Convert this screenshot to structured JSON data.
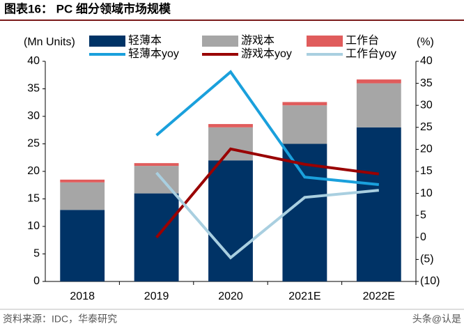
{
  "chart_data": {
    "type": "bar",
    "stacked": true,
    "title": "图表16： PC 细分领域市场规模",
    "source": "资料来源：IDC，华泰研究",
    "watermark": "头条@认是",
    "y_label": "(Mn Units)",
    "y2_label": "(%)",
    "categories": [
      "2018",
      "2019",
      "2020",
      "2021E",
      "2022E"
    ],
    "ylim": [
      0,
      40
    ],
    "yticks": [
      0,
      5,
      10,
      15,
      20,
      25,
      30,
      35,
      40
    ],
    "y2lim": [
      -10,
      40
    ],
    "y2ticks": [
      {
        "value": -10,
        "label": "(10)"
      },
      {
        "value": -5,
        "label": "(5)"
      },
      0,
      5,
      10,
      15,
      20,
      25,
      30,
      35,
      40
    ],
    "series": [
      {
        "name": "轻薄本",
        "type": "bar",
        "color": "#003366",
        "values": [
          13,
          16,
          22,
          25,
          28
        ]
      },
      {
        "name": "游戏本",
        "type": "bar",
        "color": "#a6a6a6",
        "values": [
          5,
          5,
          6,
          7,
          8
        ]
      },
      {
        "name": "工作台",
        "type": "bar",
        "color": "#e05c5c",
        "values": [
          0.5,
          0.5,
          0.6,
          0.6,
          0.7
        ]
      },
      {
        "name": "轻薄本yoy",
        "type": "line",
        "axis": "y2",
        "color": "#1aa0dc",
        "values": [
          null,
          23.2,
          37.6,
          13.7,
          12.0
        ]
      },
      {
        "name": "游戏本yoy",
        "type": "line",
        "axis": "y2",
        "color": "#990000",
        "values": [
          null,
          0,
          20.1,
          16.6,
          14.4
        ]
      },
      {
        "name": "工作台yoy",
        "type": "line",
        "axis": "y2",
        "color": "#a9cfe0",
        "values": [
          null,
          14.7,
          -4.6,
          9.1,
          10.7
        ]
      }
    ]
  }
}
